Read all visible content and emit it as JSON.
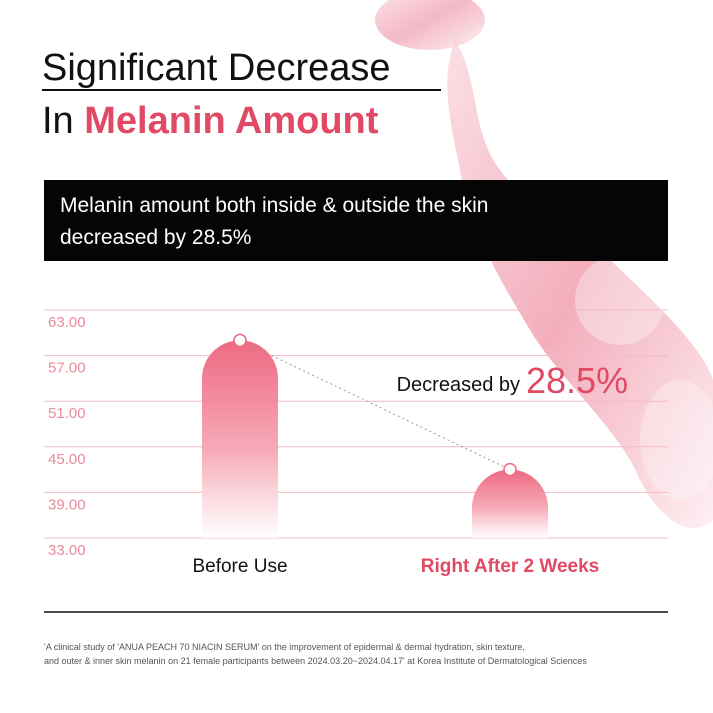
{
  "chart_data": {
    "type": "bar",
    "title_line1": "Significant Decrease",
    "title_line2_prefix": "In",
    "title_line2_highlight": "Melanin Amount",
    "subtitle_lines": [
      "Melanin amount both inside & outside the skin",
      "decreased by 28.5%"
    ],
    "annotation": "Decreased by",
    "annotation_value": "28.5%",
    "categories": [
      "Before Use",
      "Right After 2 Weeks"
    ],
    "values": [
      59,
      42
    ],
    "color": "#ee6981",
    "ylim": [
      33,
      63
    ],
    "yticks": [
      {
        "value": 63,
        "label": "63.00"
      },
      {
        "value": 57,
        "label": "57.00"
      },
      {
        "value": 51,
        "label": "51.00"
      },
      {
        "value": 45,
        "label": "45.00"
      },
      {
        "value": 39,
        "label": "39.00"
      },
      {
        "value": 33,
        "label": "33.00"
      }
    ],
    "grid": true,
    "footnote": [
      "'A clinical study of 'ANUA PEACH 70 NIACIN SERUM' on the improvement of epidermal & dermal hydration, skin texture,",
      "and outer & inner skin melanin on 21 female participants between 2024.03.20~2024.04.17' at Korea Institute of Dermatological Sciences"
    ]
  }
}
